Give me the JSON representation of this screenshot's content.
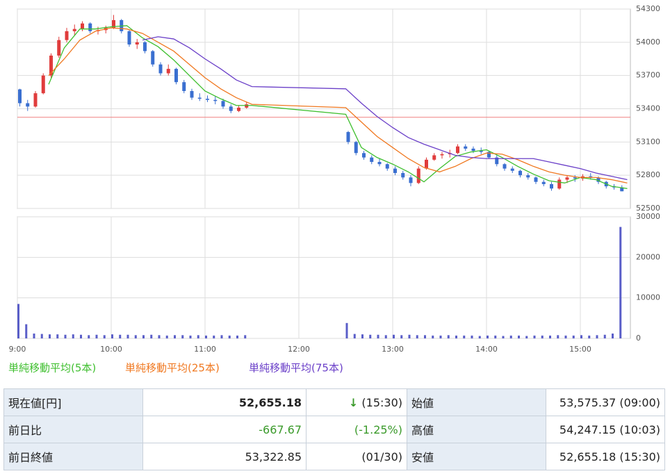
{
  "chart_data": [
    {
      "type": "candlestick",
      "x": [
        0,
        5,
        10,
        15,
        20,
        25,
        30,
        35,
        40,
        45,
        50,
        55,
        60,
        65,
        70,
        75,
        80,
        85,
        90,
        95,
        100,
        105,
        110,
        115,
        120,
        125,
        130,
        135,
        140,
        145,
        210,
        215,
        220,
        225,
        230,
        235,
        240,
        245,
        250,
        255,
        260,
        265,
        270,
        275,
        280,
        285,
        290,
        295,
        300,
        305,
        310,
        315,
        320,
        325,
        330,
        335,
        340,
        345,
        350,
        355,
        360,
        365,
        370,
        375,
        380,
        385
      ],
      "open": [
        53575,
        53450,
        53420,
        53540,
        53700,
        53880,
        54020,
        54100,
        54120,
        54170,
        54100,
        54110,
        54130,
        54200,
        54100,
        53980,
        54000,
        53920,
        53800,
        53720,
        53760,
        53640,
        53560,
        53500,
        53490,
        53480,
        53470,
        53420,
        53380,
        53410,
        53190,
        53100,
        53000,
        52960,
        52920,
        52900,
        52860,
        52820,
        52780,
        52730,
        52860,
        52940,
        52980,
        52990,
        53000,
        53060,
        53040,
        53020,
        53010,
        52960,
        52900,
        52860,
        52840,
        52800,
        52780,
        52740,
        52720,
        52680,
        52760,
        52780,
        52770,
        52790,
        52780,
        52740,
        52700,
        52690
      ],
      "high": [
        53580,
        53480,
        53560,
        53720,
        53900,
        54050,
        54130,
        54160,
        54190,
        54180,
        54140,
        54150,
        54247,
        54210,
        54110,
        54030,
        54010,
        53930,
        53820,
        53800,
        53770,
        53660,
        53580,
        53540,
        53520,
        53510,
        53490,
        53440,
        53430,
        53460,
        53200,
        53110,
        53020,
        52980,
        52950,
        52910,
        52880,
        52840,
        52800,
        52880,
        52960,
        53000,
        53010,
        53030,
        53080,
        53080,
        53060,
        53050,
        53020,
        52980,
        52910,
        52880,
        52850,
        52820,
        52790,
        52760,
        52740,
        52780,
        52800,
        52800,
        52810,
        52820,
        52790,
        52750,
        52720,
        52710
      ],
      "low": [
        53420,
        53380,
        53410,
        53530,
        53680,
        53860,
        54000,
        54060,
        54100,
        54080,
        54070,
        54080,
        54120,
        54080,
        53960,
        53940,
        53900,
        53780,
        53700,
        53700,
        53620,
        53540,
        53480,
        53470,
        53460,
        53440,
        53400,
        53360,
        53370,
        53400,
        53080,
        52980,
        52940,
        52900,
        52880,
        52840,
        52800,
        52760,
        52700,
        52720,
        52850,
        52930,
        52950,
        52960,
        52990,
        53020,
        53000,
        52990,
        52950,
        52880,
        52840,
        52820,
        52780,
        52760,
        52720,
        52700,
        52660,
        52670,
        52730,
        52740,
        52750,
        52760,
        52720,
        52680,
        52670,
        52655
      ],
      "close": [
        53450,
        53420,
        53540,
        53700,
        53880,
        54020,
        54100,
        54120,
        54170,
        54100,
        54110,
        54130,
        54200,
        54100,
        53980,
        54000,
        53920,
        53800,
        53720,
        53760,
        53640,
        53560,
        53500,
        53490,
        53480,
        53470,
        53420,
        53380,
        53410,
        53440,
        53100,
        53000,
        52960,
        52920,
        52900,
        52860,
        52820,
        52780,
        52730,
        52860,
        52940,
        52980,
        52990,
        53000,
        53060,
        53040,
        53020,
        53010,
        52960,
        52900,
        52860,
        52840,
        52800,
        52780,
        52740,
        52720,
        52680,
        52760,
        52780,
        52770,
        52790,
        52780,
        52740,
        52700,
        52690,
        52655
      ],
      "up_color": "#e03c3c",
      "down_color": "#3a6fd0",
      "series": [
        {
          "name": "単純移動平均(5本)",
          "color": "#3fbf2f",
          "x": [
            20,
            30,
            40,
            50,
            60,
            70,
            80,
            90,
            100,
            110,
            120,
            130,
            140,
            150,
            210,
            220,
            230,
            240,
            250,
            260,
            270,
            280,
            290,
            300,
            310,
            320,
            330,
            340,
            350,
            360,
            370,
            380,
            390
          ],
          "values": [
            53620,
            53950,
            54120,
            54120,
            54140,
            54150,
            54040,
            53960,
            53840,
            53700,
            53560,
            53490,
            53430,
            53430,
            53350,
            53050,
            52960,
            52900,
            52830,
            52740,
            52860,
            52970,
            53010,
            53030,
            52960,
            52880,
            52810,
            52750,
            52730,
            52780,
            52760,
            52700,
            52680
          ]
        },
        {
          "name": "単純移動平均(25本)",
          "color": "#f07820",
          "x": [
            20,
            30,
            40,
            50,
            60,
            70,
            80,
            90,
            100,
            110,
            120,
            130,
            140,
            150,
            210,
            220,
            230,
            240,
            250,
            260,
            270,
            280,
            290,
            300,
            310,
            320,
            330,
            340,
            350,
            360,
            370,
            380,
            390
          ],
          "values": [
            53700,
            53850,
            54020,
            54100,
            54130,
            54120,
            54080,
            54000,
            53920,
            53800,
            53680,
            53580,
            53500,
            53440,
            53410,
            53280,
            53150,
            53050,
            52950,
            52870,
            52830,
            52880,
            52950,
            53000,
            52990,
            52940,
            52880,
            52830,
            52800,
            52780,
            52780,
            52760,
            52730
          ]
        },
        {
          "name": "単純移動平均(75本)",
          "color": "#6a3fc8",
          "x": [
            20,
            30,
            40,
            50,
            60,
            70,
            80,
            90,
            100,
            110,
            120,
            130,
            140,
            150,
            210,
            220,
            230,
            240,
            250,
            260,
            270,
            280,
            290,
            300,
            310,
            320,
            330,
            340,
            350,
            360,
            370,
            380,
            390
          ],
          "values": [
            null,
            null,
            null,
            null,
            null,
            null,
            54020,
            54050,
            54030,
            53950,
            53850,
            53760,
            53660,
            53600,
            53580,
            53450,
            53330,
            53230,
            53140,
            53080,
            53030,
            52980,
            52960,
            52950,
            52950,
            52950,
            52950,
            52920,
            52890,
            52860,
            52820,
            52790,
            52760
          ]
        }
      ],
      "ref_line": 53322.85,
      "ref_color": "#f08080",
      "xlim": [
        0,
        392
      ],
      "ylim": [
        52500,
        54300
      ],
      "yticks": [
        52500,
        52800,
        53100,
        53400,
        53700,
        54000,
        54300
      ],
      "grid": true
    },
    {
      "type": "bar",
      "x": [
        0,
        5,
        10,
        15,
        20,
        25,
        30,
        35,
        40,
        45,
        50,
        55,
        60,
        65,
        70,
        75,
        80,
        85,
        90,
        95,
        100,
        105,
        110,
        115,
        120,
        125,
        130,
        135,
        140,
        145,
        210,
        215,
        220,
        225,
        230,
        235,
        240,
        245,
        250,
        255,
        260,
        265,
        270,
        275,
        280,
        285,
        290,
        295,
        300,
        305,
        310,
        315,
        320,
        325,
        330,
        335,
        340,
        345,
        350,
        355,
        360,
        365,
        370,
        375,
        380,
        385
      ],
      "values": [
        8500,
        3500,
        1200,
        1100,
        1000,
        1000,
        900,
        1000,
        900,
        800,
        900,
        800,
        1000,
        900,
        900,
        800,
        800,
        900,
        800,
        700,
        800,
        800,
        700,
        800,
        700,
        700,
        800,
        700,
        700,
        800,
        3800,
        1100,
        1000,
        900,
        900,
        800,
        900,
        800,
        900,
        800,
        800,
        700,
        700,
        800,
        700,
        700,
        700,
        600,
        700,
        700,
        600,
        700,
        700,
        600,
        700,
        700,
        700,
        800,
        700,
        700,
        800,
        700,
        800,
        900,
        1200,
        27500
      ],
      "color": "#5a5ec8",
      "xlim": [
        0,
        392
      ],
      "xticks": [
        {
          "value": 0,
          "label": "9:00"
        },
        {
          "value": 60,
          "label": "10:00"
        },
        {
          "value": 120,
          "label": "11:00"
        },
        {
          "value": 180,
          "label": "12:00"
        },
        {
          "value": 240,
          "label": "13:00"
        },
        {
          "value": 300,
          "label": "14:00"
        },
        {
          "value": 360,
          "label": "15:00"
        }
      ],
      "ylim": [
        0,
        30000
      ],
      "yticks": [
        0,
        10000,
        20000,
        30000
      ],
      "grid": true
    }
  ],
  "table": {
    "rows": [
      [
        "現在値[円]",
        "52,655.18",
        "↓",
        "(15:30)",
        "始値",
        "53,575.37 (09:00)"
      ],
      [
        "前日比",
        "-667.67",
        "(-1.25%)",
        "高値",
        "54,247.15 (10:03)"
      ],
      [
        "前日終値",
        "53,322.85",
        "(01/30)",
        "安値",
        "52,655.18 (15:30)"
      ]
    ]
  }
}
